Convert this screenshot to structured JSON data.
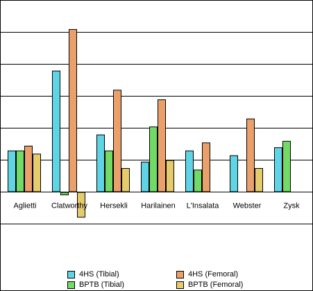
{
  "chart_data": {
    "type": "bar",
    "title": "",
    "xlabel": "",
    "ylabel": "",
    "categories": [
      "Aglietti",
      "Clatworthy",
      "Hersekli",
      "Harilainen",
      "L'Insalata",
      "Webster",
      "Zysk"
    ],
    "series": [
      {
        "name": "4HS (Tibial)",
        "color": "#5ED4E4",
        "values": [
          1.3,
          3.8,
          1.8,
          0.95,
          1.3,
          1.15,
          1.4
        ]
      },
      {
        "name": "BPTB (Tibial)",
        "color": "#72DB66",
        "values": [
          1.3,
          -0.1,
          1.3,
          2.05,
          0.7,
          null,
          1.6
        ]
      },
      {
        "name": "4HS (Femoral)",
        "color": "#E9A06A",
        "values": [
          1.45,
          5.1,
          3.2,
          2.9,
          1.55,
          2.3,
          null
        ]
      },
      {
        "name": "BPTB (Femoral)",
        "color": "#E6CB6D",
        "values": [
          1.2,
          -0.8,
          0.75,
          1.0,
          null,
          0.75,
          null
        ]
      }
    ],
    "ylim": [
      -1.5,
      6.0
    ],
    "y_gridline_step": 1,
    "grid": true,
    "legend_position": "bottom"
  }
}
